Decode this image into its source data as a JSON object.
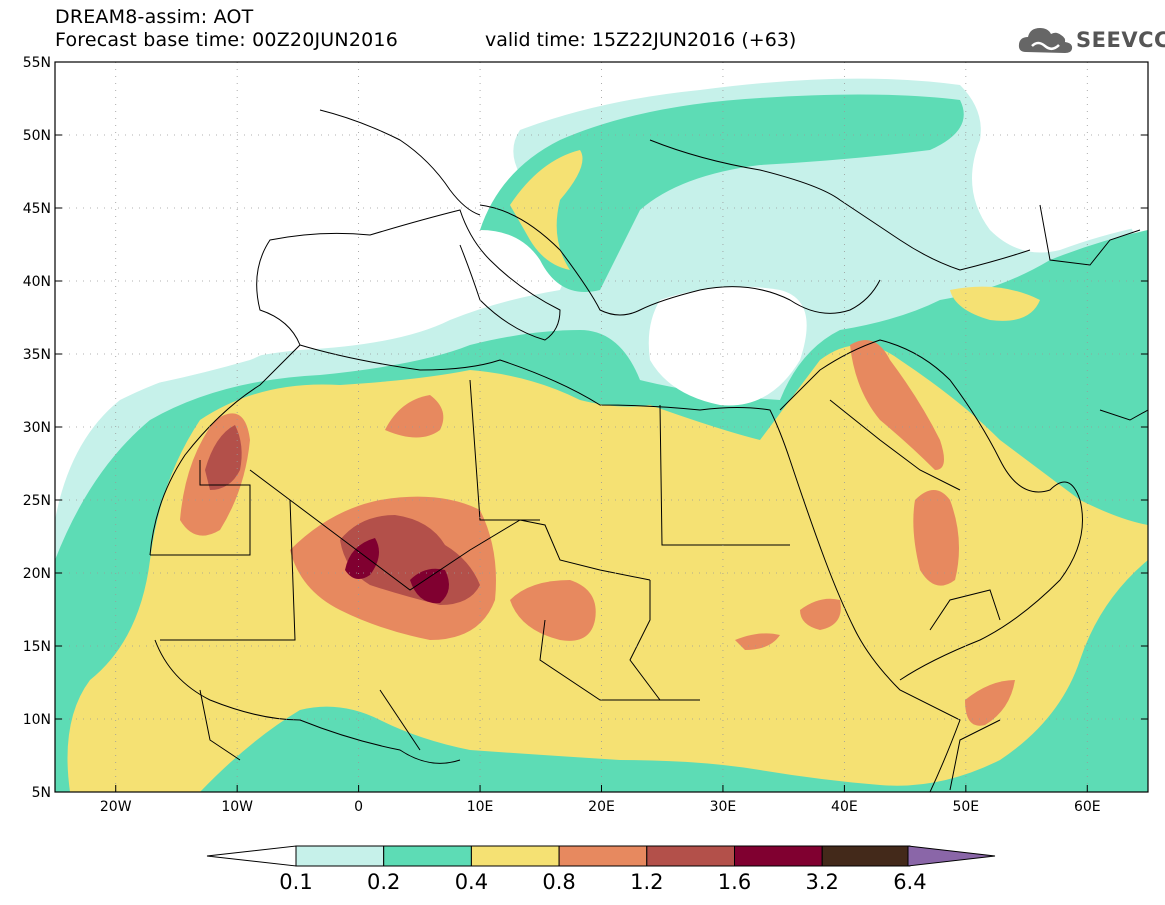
{
  "title": {
    "line1": "DREAM8-assim: AOT",
    "line2": "Forecast base time: 00Z20JUN2016",
    "valid": "valid time: 15Z22JUN2016 (+63)"
  },
  "logo": {
    "text": "SEEVCCC",
    "icon": "cloud-icon"
  },
  "axes": {
    "lon_ticks": [
      "20W",
      "10W",
      "0",
      "10E",
      "20E",
      "30E",
      "40E",
      "50E",
      "60E"
    ],
    "lat_ticks": [
      "55N",
      "50N",
      "45N",
      "40N",
      "35N",
      "30N",
      "25N",
      "20N",
      "15N",
      "10N",
      "5N"
    ],
    "lon_range": [
      -25,
      65
    ],
    "lat_range": [
      5,
      55
    ],
    "grid": true
  },
  "colorbar": {
    "labels": [
      "0.1",
      "0.2",
      "0.4",
      "0.8",
      "1.2",
      "1.6",
      "3.2",
      "6.4"
    ],
    "colors": [
      "#c6f1ea",
      "#5ddcb5",
      "#f5e173",
      "#e7895f",
      "#b3504a",
      "#800030",
      "#43291a",
      "#8a66a8"
    ]
  }
}
